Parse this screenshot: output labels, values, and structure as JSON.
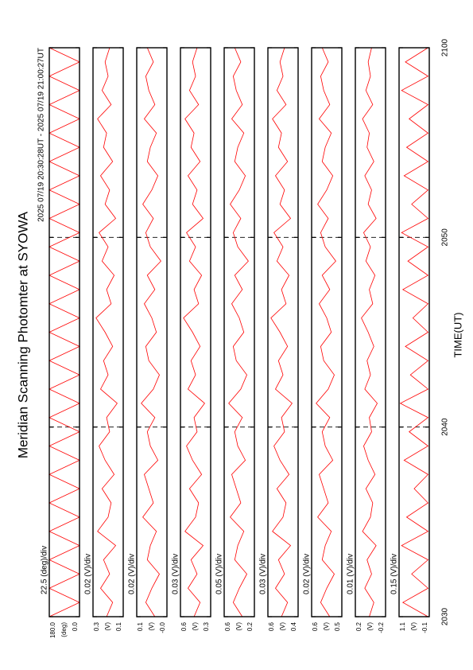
{
  "chart_data": {
    "type": "line",
    "title": "Meridian Scanning Photomter at SYOWA",
    "subtitle": "2025 07/19 20:30:28UT - 2025 07/19 21:00:27UT",
    "xlabel": "TIME(UT)",
    "xlim": [
      0,
      30
    ],
    "xticks": [
      {
        "value": 0,
        "label": "2030"
      },
      {
        "value": 10,
        "label": "2040"
      },
      {
        "value": 20,
        "label": "2050"
      },
      {
        "value": 30,
        "label": "2100"
      }
    ],
    "grid": true,
    "x": [
      0,
      0.75,
      1.5,
      2.25,
      3,
      3.75,
      4.5,
      5.25,
      6,
      6.75,
      7.5,
      8.25,
      9,
      9.75,
      10.5,
      11.25,
      12,
      12.75,
      13.5,
      14.25,
      15,
      15.75,
      16.5,
      17.25,
      18,
      18.75,
      19.5,
      20.25,
      21,
      21.75,
      22.5,
      23.25,
      24,
      24.75,
      25.5,
      26.25,
      27,
      27.75,
      28.5,
      29.25,
      30
    ],
    "panels": [
      {
        "scale": "22.5 (deg)/div",
        "unit": "(deg)",
        "color": "#ff0000",
        "ylim": [
          0,
          180
        ],
        "yticks": [
          {
            "value": 0,
            "label": "0.0"
          },
          {
            "value": 180,
            "label": "180.0"
          }
        ],
        "values": [
          180,
          0,
          180,
          0,
          180,
          0,
          180,
          0,
          180,
          0,
          180,
          0,
          180,
          0,
          180,
          0,
          180,
          0,
          180,
          0,
          180,
          0,
          180,
          0,
          180,
          0,
          180,
          0,
          180,
          0,
          180,
          0,
          180,
          0,
          180,
          0,
          180,
          0,
          180,
          0,
          180
        ]
      },
      {
        "scale": "0.02 (V)/div",
        "unit": "(V)",
        "color": "#ff0000",
        "ylim": [
          0.1,
          0.3
        ],
        "yticks": [
          0.1,
          0.3
        ],
        "values": [
          0.21,
          0.17,
          0.25,
          0.19,
          0.23,
          0.15,
          0.27,
          0.2,
          0.18,
          0.24,
          0.16,
          0.22,
          0.26,
          0.19,
          0.21,
          0.14,
          0.25,
          0.2,
          0.23,
          0.17,
          0.22,
          0.28,
          0.18,
          0.21,
          0.16,
          0.24,
          0.2,
          0.26,
          0.15,
          0.22,
          0.19,
          0.25,
          0.17,
          0.23,
          0.21,
          0.27,
          0.18,
          0.24,
          0.2,
          0.22,
          0.19
        ]
      },
      {
        "scale": "0.02 (V)/div",
        "unit": "(V)",
        "color": "#ff0000",
        "ylim": [
          0,
          0.1
        ],
        "yticks": [
          {
            "value": 0,
            "label": "-0.0"
          },
          0.1
        ],
        "values": [
          0.04,
          0.07,
          0.05,
          0.025,
          0.065,
          0.055,
          0.035,
          0.08,
          0.045,
          0.06,
          0.075,
          0.03,
          0.055,
          0.065,
          0.04,
          0.085,
          0.045,
          0.025,
          0.06,
          0.07,
          0.035,
          0.05,
          0.075,
          0.04,
          0.065,
          0.02,
          0.055,
          0.07,
          0.045,
          0.08,
          0.05,
          0.03,
          0.065,
          0.055,
          0.035,
          0.075,
          0.04,
          0.06,
          0.07,
          0.045,
          0.065
        ]
      },
      {
        "scale": "0.03 (V)/div",
        "unit": "(V)",
        "color": "#ff0000",
        "ylim": [
          0.3,
          0.6
        ],
        "yticks": [
          0.3,
          0.6
        ],
        "values": [
          0.465,
          0.405,
          0.525,
          0.435,
          0.495,
          0.375,
          0.555,
          0.45,
          0.42,
          0.51,
          0.39,
          0.48,
          0.54,
          0.435,
          0.465,
          0.36,
          0.525,
          0.45,
          0.495,
          0.405,
          0.48,
          0.57,
          0.42,
          0.465,
          0.39,
          0.51,
          0.45,
          0.54,
          0.375,
          0.48,
          0.435,
          0.525,
          0.405,
          0.495,
          0.465,
          0.555,
          0.42,
          0.51,
          0.45,
          0.48,
          0.435
        ]
      },
      {
        "scale": "0.05 (V)/div",
        "unit": "(V)",
        "color": "#ff0000",
        "ylim": [
          0.2,
          0.6
        ],
        "yticks": [
          0.2,
          0.6
        ],
        "values": [
          0.36,
          0.48,
          0.4,
          0.3,
          0.46,
          0.42,
          0.34,
          0.52,
          0.38,
          0.44,
          0.5,
          0.32,
          0.42,
          0.46,
          0.36,
          0.54,
          0.38,
          0.3,
          0.44,
          0.48,
          0.34,
          0.4,
          0.5,
          0.36,
          0.46,
          0.28,
          0.42,
          0.48,
          0.38,
          0.52,
          0.4,
          0.32,
          0.46,
          0.42,
          0.34,
          0.5,
          0.36,
          0.44,
          0.48,
          0.38,
          0.46
        ]
      },
      {
        "scale": "0.03 (V)/div",
        "unit": "(V)",
        "color": "#ff0000",
        "ylim": [
          0.4,
          0.6
        ],
        "yticks": [
          0.4,
          0.6
        ],
        "values": [
          0.51,
          0.47,
          0.55,
          0.49,
          0.53,
          0.45,
          0.57,
          0.5,
          0.48,
          0.54,
          0.46,
          0.52,
          0.56,
          0.49,
          0.51,
          0.44,
          0.55,
          0.5,
          0.53,
          0.47,
          0.52,
          0.58,
          0.48,
          0.51,
          0.46,
          0.54,
          0.5,
          0.56,
          0.45,
          0.52,
          0.49,
          0.55,
          0.47,
          0.53,
          0.51,
          0.57,
          0.48,
          0.54,
          0.5,
          0.52,
          0.49
        ]
      },
      {
        "scale": "0.02 (V)/div",
        "unit": "(V)",
        "color": "#ff0000",
        "ylim": [
          0.5,
          0.6
        ],
        "yticks": [
          0.5,
          0.6
        ],
        "values": [
          0.54,
          0.57,
          0.55,
          0.525,
          0.565,
          0.555,
          0.535,
          0.58,
          0.545,
          0.56,
          0.575,
          0.53,
          0.555,
          0.565,
          0.54,
          0.585,
          0.545,
          0.525,
          0.56,
          0.57,
          0.535,
          0.55,
          0.575,
          0.54,
          0.565,
          0.52,
          0.555,
          0.57,
          0.545,
          0.58,
          0.55,
          0.53,
          0.565,
          0.555,
          0.535,
          0.575,
          0.54,
          0.56,
          0.57,
          0.545,
          0.565
        ]
      },
      {
        "scale": "0.01 (V)/div",
        "unit": "(V)",
        "color": "#ff0000",
        "ylim": [
          -0.2,
          0.2
        ],
        "yticks": [
          -0.2,
          0.2
        ],
        "values": [
          0.015,
          -0.045,
          0.075,
          -0.015,
          0.045,
          -0.075,
          0.105,
          0.0,
          -0.03,
          0.06,
          -0.06,
          0.03,
          0.09,
          -0.015,
          0.015,
          -0.09,
          0.075,
          0.0,
          0.045,
          -0.045,
          0.03,
          0.12,
          -0.03,
          0.015,
          -0.06,
          0.06,
          0.0,
          0.09,
          -0.075,
          0.03,
          -0.015,
          0.075,
          -0.045,
          0.045,
          0.015,
          0.105,
          -0.03,
          0.06,
          0.0,
          0.03,
          -0.015
        ]
      },
      {
        "scale": "0.15 (V)/div",
        "unit": "(V)",
        "color": "#ff0000",
        "ylim": [
          -0.1,
          1.1
        ],
        "yticks": [
          -0.1,
          1.1
        ],
        "values": [
          -0.05,
          0.95,
          -0.05,
          0.6,
          -0.05,
          1.0,
          -0.05,
          0.8,
          -0.05,
          0.5,
          -0.05,
          0.9,
          -0.05,
          0.7,
          -0.05,
          1.05,
          -0.05,
          0.65,
          -0.05,
          0.85,
          -0.05,
          0.55,
          -0.05,
          0.95,
          -0.05,
          0.75,
          -0.05,
          1.0,
          -0.05,
          0.6,
          -0.05,
          0.9,
          -0.05,
          0.8,
          -0.05,
          0.7,
          -0.05,
          1.0,
          -0.05,
          0.85,
          -0.05
        ]
      }
    ]
  }
}
